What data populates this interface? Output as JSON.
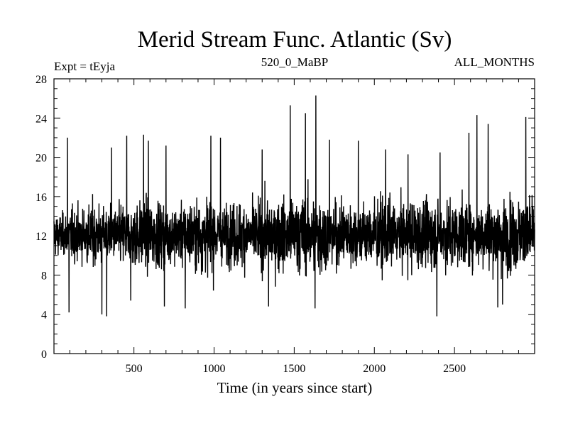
{
  "chart_data": {
    "type": "line",
    "title": "Merid Stream Func. Atlantic (Sv)",
    "subtitle_left": "Expt = tEyja",
    "subtitle_center": "520_0_MaBP",
    "subtitle_right": "ALL_MONTHS",
    "xlabel": "Time (in years since start)",
    "ylabel": "",
    "xlim": [
      1,
      3000
    ],
    "ylim": [
      0,
      28
    ],
    "xticks": [
      500,
      1000,
      1500,
      2000,
      2500
    ],
    "yticks": [
      0,
      4,
      8,
      12,
      16,
      20,
      24,
      28
    ],
    "grid": false,
    "legend": "none",
    "series": [
      {
        "name": "Merid Stream Func. Atlantic",
        "color": "#000000",
        "n_points": 3000,
        "mean": 12.1,
        "typical_range": [
          8,
          16
        ],
        "envelope_min": [
          8.0,
          7.0,
          7.5,
          7.5,
          6.5,
          5.0,
          6.5,
          7.0,
          6.0,
          4.5,
          6.5,
          6.5,
          6.5,
          5.0,
          6.5,
          6.0,
          6.5,
          6.0,
          6.5,
          5.5,
          6.0,
          6.5,
          6.0,
          6.5,
          5.0,
          5.5,
          6.0,
          5.5,
          5.5,
          6.0
        ],
        "envelope_max": [
          16.5,
          17.5,
          18.5,
          17.5,
          18.5,
          18.5,
          19.0,
          18.0,
          19.0,
          19.5,
          18.0,
          19.0,
          18.5,
          19.5,
          19.5,
          20.0,
          20.5,
          18.5,
          19.0,
          18.5,
          19.5,
          18.5,
          19.5,
          19.0,
          18.5,
          19.0,
          18.5,
          19.5,
          19.5,
          20.0
        ],
        "peaks": [
          {
            "x": 85,
            "y": 22.0
          },
          {
            "x": 360,
            "y": 21.0
          },
          {
            "x": 455,
            "y": 22.2
          },
          {
            "x": 560,
            "y": 22.3
          },
          {
            "x": 590,
            "y": 21.7
          },
          {
            "x": 700,
            "y": 21.2
          },
          {
            "x": 980,
            "y": 22.2
          },
          {
            "x": 1040,
            "y": 22.0
          },
          {
            "x": 1300,
            "y": 20.8
          },
          {
            "x": 1475,
            "y": 25.3
          },
          {
            "x": 1570,
            "y": 24.5
          },
          {
            "x": 1635,
            "y": 26.3
          },
          {
            "x": 1720,
            "y": 21.8
          },
          {
            "x": 1900,
            "y": 21.7
          },
          {
            "x": 2070,
            "y": 20.8
          },
          {
            "x": 2210,
            "y": 20.3
          },
          {
            "x": 2410,
            "y": 20.5
          },
          {
            "x": 2590,
            "y": 22.5
          },
          {
            "x": 2640,
            "y": 24.3
          },
          {
            "x": 2710,
            "y": 23.4
          },
          {
            "x": 2945,
            "y": 24.1
          }
        ],
        "troughs": [
          {
            "x": 95,
            "y": 4.2
          },
          {
            "x": 300,
            "y": 4.0
          },
          {
            "x": 330,
            "y": 3.8
          },
          {
            "x": 480,
            "y": 5.4
          },
          {
            "x": 690,
            "y": 4.8
          },
          {
            "x": 820,
            "y": 4.6
          },
          {
            "x": 1340,
            "y": 4.8
          },
          {
            "x": 1630,
            "y": 4.6
          },
          {
            "x": 2390,
            "y": 3.8
          },
          {
            "x": 2770,
            "y": 4.7
          },
          {
            "x": 2800,
            "y": 5.0
          }
        ]
      }
    ]
  }
}
